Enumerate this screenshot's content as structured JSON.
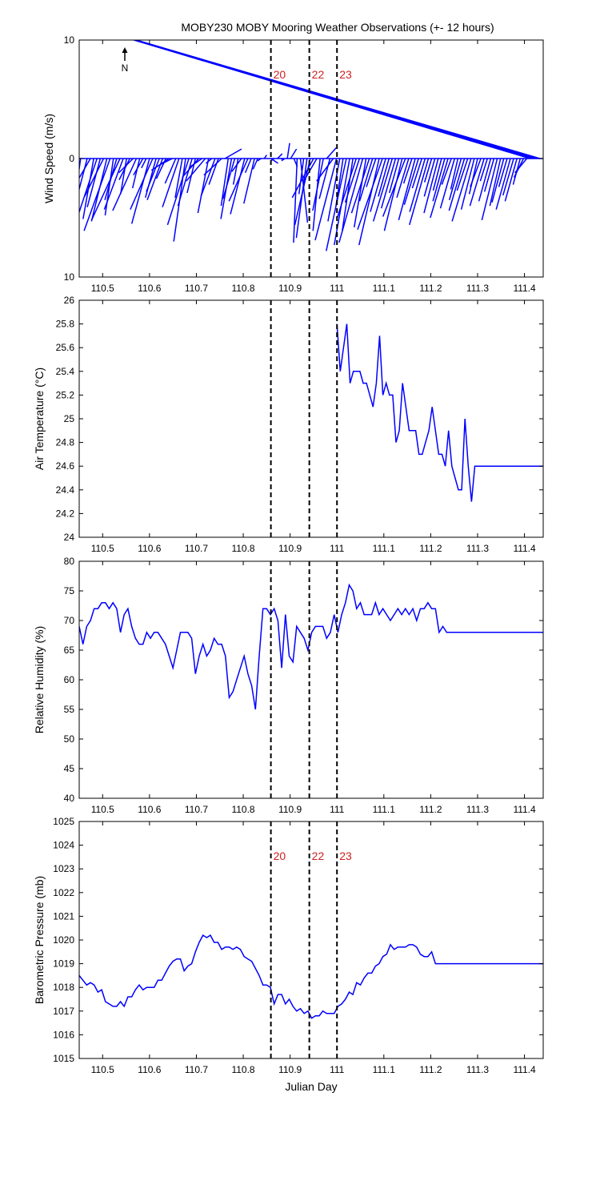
{
  "figure_title": "MOBY230 MOBY Mooring Weather Observations (+- 12 hours)",
  "north_label": "N",
  "colors": {
    "line": "#0000ff",
    "marker_text": "#cc2222",
    "axis": "#000000"
  },
  "markers": {
    "x": [
      110.859,
      110.941,
      111.0
    ],
    "labels": [
      "20",
      "22",
      "23"
    ]
  },
  "chart_data": [
    {
      "type": "vector",
      "name": "wind",
      "xlabel": "",
      "ylabel": "Wind Speed (m/s)",
      "xlim": [
        110.45,
        111.44
      ],
      "ylim": [
        -10,
        10
      ],
      "yticks": [
        10,
        0,
        10
      ],
      "xticks": [
        110.5,
        110.6,
        110.7,
        110.8,
        110.9,
        111,
        111.1,
        111.2,
        111.3,
        111.4
      ],
      "x": [
        110.453,
        110.467,
        110.474,
        110.481,
        110.488,
        110.495,
        110.502,
        110.509,
        110.516,
        110.523,
        110.53,
        110.537,
        110.544,
        110.551,
        110.558,
        110.565,
        110.572,
        110.579,
        110.586,
        110.593,
        110.6,
        110.607,
        110.614,
        110.621,
        110.628,
        110.635,
        110.642,
        110.649,
        110.656,
        110.663,
        110.67,
        110.677,
        110.684,
        110.691,
        110.698,
        110.705,
        110.712,
        110.719,
        110.726,
        110.733,
        110.74,
        110.747,
        110.754,
        110.761,
        110.768,
        110.775,
        110.782,
        110.789,
        110.796,
        110.803,
        110.81,
        110.817,
        110.824,
        110.831,
        110.838,
        110.845,
        110.859,
        110.866,
        110.873,
        110.88,
        110.887,
        110.894,
        110.901,
        110.908,
        110.915,
        110.922,
        110.929,
        110.936,
        110.943,
        110.95,
        110.957,
        110.964,
        110.971,
        110.978,
        110.985,
        110.992,
        110.999,
        111.006,
        111.013,
        111.02,
        111.027,
        111.034,
        111.041,
        111.048,
        111.055,
        111.062,
        111.069,
        111.076,
        111.083,
        111.09,
        111.097,
        111.104,
        111.111,
        111.118,
        111.125,
        111.132,
        111.139,
        111.146,
        111.153,
        111.16,
        111.167,
        111.174,
        111.181,
        111.188,
        111.195,
        111.202,
        111.209,
        111.216,
        111.223,
        111.23,
        111.237,
        111.244,
        111.251,
        111.258,
        111.265,
        111.272,
        111.279,
        111.286,
        111.293,
        111.3,
        111.307,
        111.314,
        111.321,
        111.328,
        111.335,
        111.342,
        111.349,
        111.356,
        111.363,
        111.37,
        111.377,
        111.384,
        111.391,
        111.398,
        111.405,
        111.412,
        111.419,
        111.426,
        111.433
      ],
      "u": [
        -0.8,
        -1.2,
        -1.8,
        -0.9,
        -2.0,
        -1.1,
        -1.6,
        -1.3,
        -2.2,
        -0.7,
        -1.0,
        -2.4,
        -1.6,
        -0.5,
        -0.9,
        -1.2,
        -2.0,
        -0.6,
        -0.8,
        -0.4,
        -1.5,
        -1.9,
        -0.9,
        -1.1,
        -1.3,
        -0.8,
        -1.5,
        -1.2,
        -0.9,
        -1.4,
        -0.6,
        -1.0,
        -1.8,
        -1.2,
        -0.7,
        -1.4,
        -1.0,
        -1.6,
        -0.9,
        -0.5,
        -1.2,
        -0.8,
        -1.5,
        1.4,
        -0.6,
        -0.9,
        -1.0,
        -0.4,
        -0.8,
        -1.2,
        -1.6,
        -0.5,
        -0.9,
        -0.4,
        -0.3,
        0.2,
        0.6,
        -0.3,
        0.4,
        0.3,
        -0.2,
        0.2,
        0.5,
        0.3,
        -0.3,
        0.6,
        -0.4,
        -0.9,
        -1.3,
        -1.8,
        -1.1,
        -0.6,
        -0.9,
        0.8,
        -0.9,
        -1.4,
        -1.8,
        -1.0,
        -0.6,
        -1.7,
        -1.3,
        -0.9,
        -1.6,
        -1.2,
        -2.0,
        -1.0,
        -1.5,
        -1.1,
        -0.8,
        -1.7,
        -2.1,
        -1.3,
        -0.9,
        -1.6,
        -1.2,
        -0.8,
        -1.5,
        -1.9,
        -1.0,
        -0.7,
        -1.4,
        -1.2,
        -0.8,
        -1.3,
        -1.6,
        -0.6,
        -0.9,
        -1.2,
        -0.7,
        -1.0,
        -1.5,
        -0.8,
        -1.2,
        -0.6,
        -1.0,
        -1.3,
        -0.9,
        -1.6,
        -1.1,
        -0.7,
        -0.9,
        -1.2,
        -0.6,
        -1.0,
        -0.8,
        -1.3,
        -0.9,
        -1.0,
        -0.7,
        -1.2,
        -0.9,
        -1.0,
        -0.6,
        -0.8,
        -1.0
      ],
      "v": [
        -5.8,
        -4.6,
        -3.1,
        -5.1,
        -6.0,
        -4.1,
        -3.2,
        -5.3,
        -6.1,
        -4.8,
        -3.5,
        -5.2,
        -4.3,
        -3.0,
        -1.8,
        -1.2,
        -4.4,
        -2.5,
        -1.4,
        -0.8,
        -5.5,
        -4.3,
        -3.3,
        -2.8,
        -3.5,
        -1.7,
        -1.0,
        -0.6,
        -2.1,
        -4.1,
        -3.3,
        -7.0,
        -5.6,
        -4.0,
        -2.9,
        -1.6,
        -0.7,
        -1.9,
        -4.6,
        -0.4,
        -3.2,
        -2.2,
        -1.4,
        0.8,
        -4.0,
        -5.1,
        -3.4,
        -2.2,
        -1.1,
        -4.7,
        -3.6,
        -1.2,
        -3.8,
        -0.9,
        -0.2,
        0.3,
        -0.4,
        -0.2,
        0.4,
        -0.1,
        -0.2,
        1.3,
        0.8,
        -0.7,
        -7.1,
        -5.4,
        -3.0,
        -6.7,
        -5.6,
        -3.3,
        -1.9,
        -6.1,
        -4.4,
        0.9,
        -3.4,
        -1.9,
        -6.9,
        -5.3,
        -4.0,
        -7.8,
        -7.3,
        -6.1,
        -5.0,
        -3.7,
        -7.1,
        -5.8,
        -4.6,
        -3.6,
        -2.4,
        -7.3,
        -6.0,
        -4.5,
        -3.2,
        -5.3,
        -4.2,
        -2.9,
        -6.1,
        -4.9,
        -3.3,
        -2.1,
        -5.2,
        -3.9,
        -2.5,
        -4.5,
        -5.6,
        -2.0,
        -3.2,
        -4.6,
        -2.7,
        -3.6,
        -5.0,
        -2.2,
        -4.2,
        -2.6,
        -3.5,
        -4.4,
        -2.7,
        -5.3,
        -4.3,
        -3.0,
        -2.4,
        -4.0,
        -1.9,
        -3.6,
        -2.8,
        -5.2,
        -4.0,
        -3.7,
        -2.4,
        -4.3,
        -3.1,
        -3.6,
        -2.2,
        -1.6,
        -1.2
      ]
    },
    {
      "type": "line",
      "name": "air_temperature",
      "xlabel": "",
      "ylabel": "Air Temperature (°C)",
      "xlim": [
        110.45,
        111.44
      ],
      "ylim": [
        24,
        26
      ],
      "yticks": [
        24,
        24.2,
        24.4,
        24.6,
        24.8,
        25,
        25.2,
        25.4,
        25.6,
        25.8,
        26
      ],
      "ytick_labels": [
        "24",
        "24.2",
        "24.4",
        "24.6",
        "24.8",
        "25",
        "25.2",
        "25.4",
        "25.6",
        "25.8",
        "26"
      ],
      "xticks": [
        110.5,
        110.6,
        110.7,
        110.8,
        110.9,
        111,
        111.1,
        111.2,
        111.3,
        111.4
      ],
      "x": [
        111.0,
        111.007,
        111.021,
        111.028,
        111.035,
        111.042,
        111.049,
        111.056,
        111.063,
        111.07,
        111.077,
        111.084,
        111.091,
        111.098,
        111.105,
        111.112,
        111.119,
        111.126,
        111.133,
        111.14,
        111.147,
        111.154,
        111.161,
        111.168,
        111.175,
        111.182,
        111.189,
        111.196,
        111.203,
        111.21,
        111.217,
        111.224,
        111.231,
        111.238,
        111.245,
        111.252,
        111.259,
        111.266,
        111.273,
        111.28,
        111.287,
        111.294,
        111.301,
        111.308,
        111.315,
        111.322,
        111.329,
        111.336,
        111.343,
        111.35,
        111.357,
        111.364,
        111.371,
        111.378,
        111.385,
        111.392,
        111.399,
        111.406,
        111.413,
        111.42,
        111.427,
        111.434,
        111.44
      ],
      "y": [
        25.8,
        25.4,
        25.8,
        25.3,
        25.4,
        25.4,
        25.4,
        25.3,
        25.3,
        25.2,
        25.1,
        25.3,
        25.7,
        25.2,
        25.3,
        25.2,
        25.2,
        24.8,
        24.9,
        25.3,
        25.1,
        24.9,
        24.9,
        24.9,
        24.7,
        24.7,
        24.8,
        24.9,
        25.1,
        24.9,
        24.7,
        24.7,
        24.6,
        24.9,
        24.6,
        24.5,
        24.4,
        24.4,
        25.0,
        24.6,
        24.3,
        24.6,
        24.6,
        24.6,
        24.6,
        24.6,
        24.6,
        24.6,
        24.6,
        24.6,
        24.6,
        24.6,
        24.6,
        24.6,
        24.6,
        24.6,
        24.6,
        24.6,
        24.6,
        24.6,
        24.6,
        24.6,
        24.6
      ]
    },
    {
      "type": "line",
      "name": "relative_humidity",
      "xlabel": "",
      "ylabel": "Relative Humidity (%)",
      "xlim": [
        110.45,
        111.44
      ],
      "ylim": [
        40,
        80
      ],
      "yticks": [
        40,
        45,
        50,
        55,
        60,
        65,
        70,
        75,
        80
      ],
      "xticks": [
        110.5,
        110.6,
        110.7,
        110.8,
        110.9,
        111,
        111.1,
        111.2,
        111.3,
        111.4
      ],
      "x": [
        110.45,
        110.458,
        110.466,
        110.474,
        110.482,
        110.49,
        110.498,
        110.506,
        110.514,
        110.522,
        110.53,
        110.538,
        110.546,
        110.554,
        110.562,
        110.57,
        110.578,
        110.586,
        110.594,
        110.602,
        110.61,
        110.618,
        110.626,
        110.634,
        110.642,
        110.65,
        110.658,
        110.666,
        110.674,
        110.682,
        110.69,
        110.698,
        110.706,
        110.714,
        110.722,
        110.73,
        110.738,
        110.746,
        110.754,
        110.762,
        110.77,
        110.778,
        110.786,
        110.794,
        110.802,
        110.81,
        110.818,
        110.826,
        110.834,
        110.842,
        110.85,
        110.858,
        110.866,
        110.874,
        110.882,
        110.89,
        110.898,
        110.906,
        110.914,
        110.922,
        110.93,
        110.938,
        110.946,
        110.954,
        110.962,
        110.97,
        110.978,
        110.986,
        110.994,
        111.002,
        111.01,
        111.018,
        111.026,
        111.034,
        111.042,
        111.05,
        111.058,
        111.066,
        111.074,
        111.082,
        111.09,
        111.098,
        111.106,
        111.114,
        111.122,
        111.13,
        111.138,
        111.146,
        111.154,
        111.162,
        111.17,
        111.178,
        111.186,
        111.194,
        111.202,
        111.21,
        111.218,
        111.226,
        111.234,
        111.242,
        111.25,
        111.258,
        111.266,
        111.274,
        111.282,
        111.29,
        111.298,
        111.306,
        111.314,
        111.322,
        111.33,
        111.338,
        111.346,
        111.354,
        111.362,
        111.37,
        111.378,
        111.386,
        111.394,
        111.402,
        111.41,
        111.418,
        111.426,
        111.434,
        111.44
      ],
      "y": [
        69,
        66,
        69,
        70,
        72,
        72,
        73,
        73,
        72,
        73,
        72,
        68,
        71,
        72,
        69,
        67,
        66,
        66,
        68,
        67,
        68,
        68,
        67,
        66,
        64,
        62,
        65,
        68,
        68,
        68,
        67,
        61,
        64,
        66,
        64,
        65,
        67,
        66,
        66,
        64,
        57,
        58,
        60,
        62,
        64,
        61,
        59,
        55,
        64,
        72,
        72,
        71,
        72,
        70,
        62,
        71,
        64,
        63,
        69,
        68,
        67,
        65,
        68,
        69,
        69,
        69,
        67,
        68,
        71,
        68,
        71,
        73,
        76,
        75,
        72,
        73,
        71,
        71,
        71,
        73,
        71,
        72,
        71,
        70,
        71,
        72,
        71,
        72,
        71,
        72,
        70,
        72,
        72,
        73,
        72,
        72,
        68,
        69,
        68,
        68,
        68,
        68,
        68,
        68,
        68,
        68,
        68,
        68,
        68,
        68,
        68,
        68,
        68,
        68,
        68,
        68,
        68,
        68,
        68,
        68,
        68,
        68,
        68,
        68,
        68
      ]
    },
    {
      "type": "line",
      "name": "barometric_pressure",
      "xlabel": "Julian Day",
      "ylabel": "Barometric Pressure (mb)",
      "xlim": [
        110.45,
        111.44
      ],
      "ylim": [
        1015,
        1025
      ],
      "yticks": [
        1015,
        1016,
        1017,
        1018,
        1019,
        1020,
        1021,
        1022,
        1023,
        1024,
        1025
      ],
      "xticks": [
        110.5,
        110.6,
        110.7,
        110.8,
        110.9,
        111,
        111.1,
        111.2,
        111.3,
        111.4
      ],
      "x": [
        110.45,
        110.458,
        110.466,
        110.474,
        110.482,
        110.49,
        110.498,
        110.506,
        110.514,
        110.522,
        110.53,
        110.538,
        110.546,
        110.554,
        110.562,
        110.57,
        110.578,
        110.586,
        110.594,
        110.602,
        110.61,
        110.618,
        110.626,
        110.634,
        110.642,
        110.65,
        110.658,
        110.666,
        110.674,
        110.682,
        110.69,
        110.698,
        110.706,
        110.714,
        110.722,
        110.73,
        110.738,
        110.746,
        110.754,
        110.762,
        110.77,
        110.778,
        110.786,
        110.794,
        110.802,
        110.81,
        110.818,
        110.826,
        110.834,
        110.842,
        110.85,
        110.858,
        110.866,
        110.874,
        110.882,
        110.89,
        110.898,
        110.906,
        110.914,
        110.922,
        110.93,
        110.938,
        110.946,
        110.954,
        110.962,
        110.97,
        110.978,
        110.986,
        110.994,
        111.002,
        111.01,
        111.018,
        111.026,
        111.034,
        111.042,
        111.05,
        111.058,
        111.066,
        111.074,
        111.082,
        111.09,
        111.098,
        111.106,
        111.114,
        111.122,
        111.13,
        111.138,
        111.146,
        111.154,
        111.162,
        111.17,
        111.178,
        111.186,
        111.194,
        111.202,
        111.21,
        111.218,
        111.226,
        111.234,
        111.242,
        111.25,
        111.258,
        111.266,
        111.274,
        111.282,
        111.29,
        111.298,
        111.306,
        111.314,
        111.322,
        111.33,
        111.338,
        111.346,
        111.354,
        111.362,
        111.37,
        111.378,
        111.386,
        111.394,
        111.402,
        111.41,
        111.418,
        111.426,
        111.434,
        111.44
      ],
      "y": [
        1018.5,
        1018.3,
        1018.1,
        1018.2,
        1018.1,
        1017.8,
        1017.9,
        1017.4,
        1017.3,
        1017.2,
        1017.2,
        1017.4,
        1017.2,
        1017.6,
        1017.6,
        1017.9,
        1018.1,
        1017.9,
        1018.0,
        1018.0,
        1018.0,
        1018.3,
        1018.3,
        1018.6,
        1018.9,
        1019.1,
        1019.2,
        1019.2,
        1018.7,
        1018.9,
        1019.0,
        1019.5,
        1019.9,
        1020.2,
        1020.1,
        1020.2,
        1019.9,
        1019.9,
        1019.6,
        1019.7,
        1019.7,
        1019.6,
        1019.7,
        1019.6,
        1019.3,
        1019.2,
        1019.1,
        1018.8,
        1018.5,
        1018.1,
        1018.1,
        1018.0,
        1017.3,
        1017.7,
        1017.7,
        1017.3,
        1017.5,
        1017.2,
        1017.0,
        1017.1,
        1016.9,
        1017.0,
        1016.7,
        1016.8,
        1016.8,
        1017.0,
        1016.9,
        1016.9,
        1016.9,
        1017.2,
        1017.3,
        1017.5,
        1017.8,
        1017.7,
        1018.2,
        1018.1,
        1018.4,
        1018.6,
        1018.6,
        1018.9,
        1019.0,
        1019.3,
        1019.4,
        1019.8,
        1019.6,
        1019.7,
        1019.7,
        1019.7,
        1019.8,
        1019.8,
        1019.7,
        1019.4,
        1019.3,
        1019.3,
        1019.5,
        1019.0,
        1019.0,
        1019.0,
        1019.0,
        1019.0,
        1019.0,
        1019.0,
        1019.0,
        1019.0,
        1019.0,
        1019.0,
        1019.0,
        1019.0,
        1019.0,
        1019.0,
        1019.0,
        1019.0,
        1019.0,
        1019.0,
        1019.0,
        1019.0,
        1019.0,
        1019.0,
        1019.0,
        1019.0,
        1019.0,
        1019.0,
        1019.0,
        1019.0,
        1019.0
      ]
    }
  ]
}
